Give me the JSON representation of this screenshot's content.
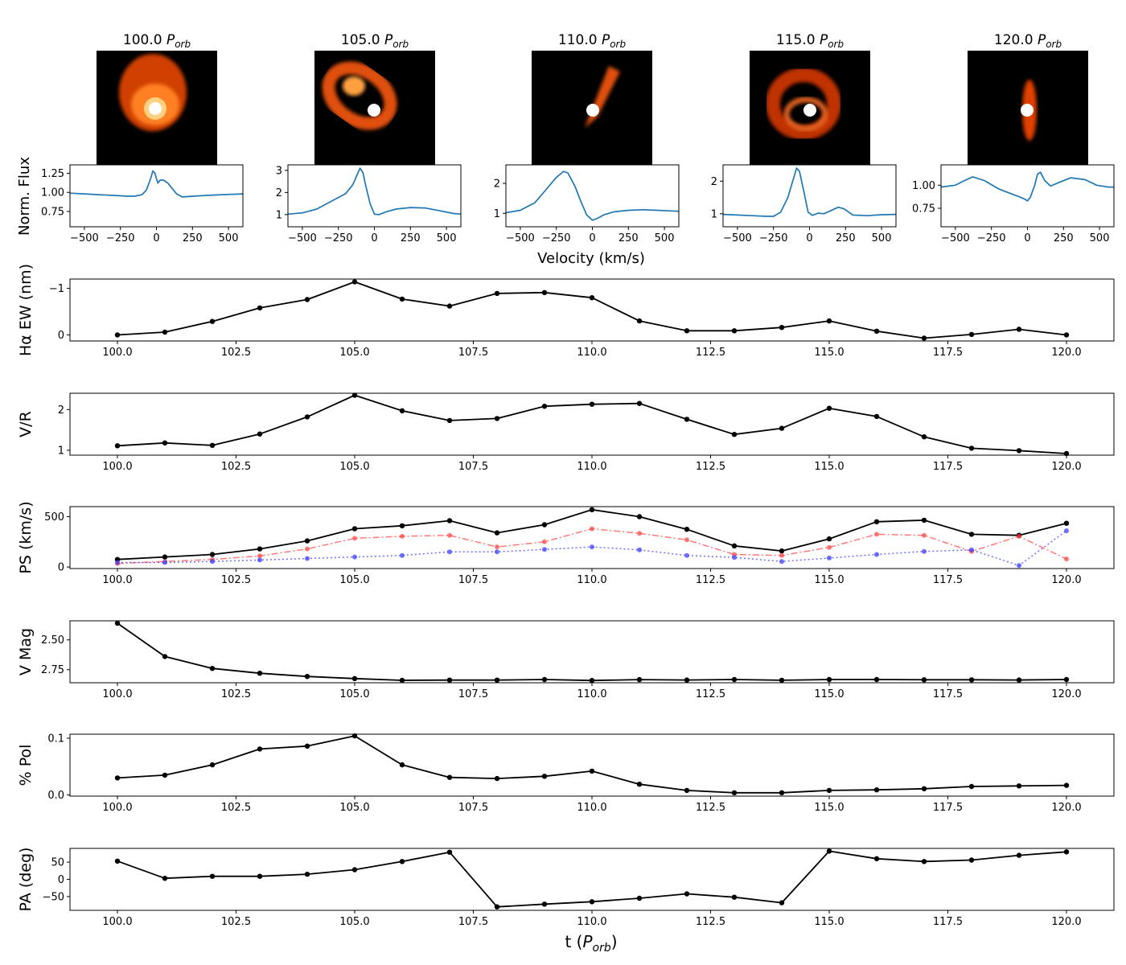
{
  "figure": {
    "xlabel": "t (",
    "xlabel_sub": "orb",
    "velocity_label": "Velocity (km/s)",
    "flux_label": "Norm. Flux"
  },
  "colors": {
    "line": "#000000",
    "profile": "#1f77b4",
    "red": "#ff4040",
    "blue": "#4040ff"
  },
  "snapshots": [
    {
      "title": "100.0 ",
      "title_sub": "orb",
      "yticks": [
        0.75,
        1.0,
        1.25
      ],
      "ylim": [
        0.55,
        1.36
      ],
      "profile": [
        [
          -600,
          0.99
        ],
        [
          -500,
          0.98
        ],
        [
          -400,
          0.97
        ],
        [
          -300,
          0.96
        ],
        [
          -200,
          0.95
        ],
        [
          -150,
          0.95
        ],
        [
          -100,
          0.97
        ],
        [
          -70,
          1.03
        ],
        [
          -40,
          1.18
        ],
        [
          -25,
          1.28
        ],
        [
          -10,
          1.25
        ],
        [
          0,
          1.18
        ],
        [
          10,
          1.12
        ],
        [
          25,
          1.16
        ],
        [
          50,
          1.16
        ],
        [
          80,
          1.12
        ],
        [
          110,
          1.05
        ],
        [
          140,
          0.98
        ],
        [
          180,
          0.94
        ],
        [
          250,
          0.95
        ],
        [
          350,
          0.96
        ],
        [
          450,
          0.97
        ],
        [
          600,
          0.98
        ]
      ]
    },
    {
      "title": "105.0 ",
      "title_sub": "orb",
      "yticks": [
        1,
        2,
        3
      ],
      "ylim": [
        0.45,
        3.25
      ],
      "profile": [
        [
          -600,
          1.02
        ],
        [
          -500,
          1.08
        ],
        [
          -400,
          1.25
        ],
        [
          -300,
          1.6
        ],
        [
          -200,
          1.95
        ],
        [
          -150,
          2.35
        ],
        [
          -120,
          2.8
        ],
        [
          -100,
          3.1
        ],
        [
          -80,
          2.9
        ],
        [
          -60,
          2.3
        ],
        [
          -30,
          1.5
        ],
        [
          0,
          1.02
        ],
        [
          30,
          1.0
        ],
        [
          80,
          1.12
        ],
        [
          150,
          1.25
        ],
        [
          250,
          1.32
        ],
        [
          350,
          1.3
        ],
        [
          450,
          1.18
        ],
        [
          550,
          1.05
        ],
        [
          600,
          1.02
        ]
      ]
    },
    {
      "title": "110.0 ",
      "title_sub": "orb",
      "yticks": [
        1,
        2
      ],
      "ylim": [
        0.55,
        2.62
      ],
      "profile": [
        [
          -600,
          1.02
        ],
        [
          -500,
          1.1
        ],
        [
          -400,
          1.35
        ],
        [
          -320,
          1.8
        ],
        [
          -250,
          2.2
        ],
        [
          -200,
          2.4
        ],
        [
          -170,
          2.35
        ],
        [
          -120,
          1.9
        ],
        [
          -80,
          1.4
        ],
        [
          -40,
          0.95
        ],
        [
          0,
          0.77
        ],
        [
          30,
          0.82
        ],
        [
          80,
          0.95
        ],
        [
          150,
          1.05
        ],
        [
          250,
          1.1
        ],
        [
          350,
          1.12
        ],
        [
          450,
          1.1
        ],
        [
          550,
          1.08
        ],
        [
          600,
          1.07
        ]
      ]
    },
    {
      "title": "115.0 ",
      "title_sub": "orb",
      "yticks": [
        1,
        2
      ],
      "ylim": [
        0.6,
        2.5
      ],
      "profile": [
        [
          -600,
          0.98
        ],
        [
          -500,
          0.96
        ],
        [
          -400,
          0.94
        ],
        [
          -300,
          0.92
        ],
        [
          -250,
          0.92
        ],
        [
          -200,
          1.05
        ],
        [
          -150,
          1.5
        ],
        [
          -110,
          2.1
        ],
        [
          -90,
          2.4
        ],
        [
          -70,
          2.3
        ],
        [
          -40,
          1.7
        ],
        [
          -10,
          1.05
        ],
        [
          20,
          0.95
        ],
        [
          60,
          1.02
        ],
        [
          100,
          1.0
        ],
        [
          150,
          1.1
        ],
        [
          200,
          1.2
        ],
        [
          240,
          1.15
        ],
        [
          300,
          0.96
        ],
        [
          400,
          0.94
        ],
        [
          500,
          0.97
        ],
        [
          600,
          0.98
        ]
      ]
    },
    {
      "title": "120.0 ",
      "title_sub": "orb",
      "yticks": [
        0.75,
        1.0
      ],
      "ylim": [
        0.55,
        1.22
      ],
      "profile": [
        [
          -600,
          0.98
        ],
        [
          -500,
          1.0
        ],
        [
          -450,
          1.04
        ],
        [
          -380,
          1.09
        ],
        [
          -300,
          1.05
        ],
        [
          -200,
          0.96
        ],
        [
          -100,
          0.9
        ],
        [
          -50,
          0.87
        ],
        [
          -20,
          0.85
        ],
        [
          0,
          0.83
        ],
        [
          20,
          0.87
        ],
        [
          50,
          1.0
        ],
        [
          70,
          1.12
        ],
        [
          90,
          1.14
        ],
        [
          120,
          1.05
        ],
        [
          160,
          0.99
        ],
        [
          220,
          1.03
        ],
        [
          300,
          1.08
        ],
        [
          400,
          1.06
        ],
        [
          480,
          1.0
        ],
        [
          560,
          0.98
        ],
        [
          600,
          0.98
        ]
      ]
    }
  ],
  "chart_data": {
    "type": "line",
    "x": [
      100,
      101,
      102,
      103,
      104,
      105,
      106,
      107,
      108,
      109,
      110,
      111,
      112,
      113,
      114,
      115,
      116,
      117,
      118,
      119,
      120
    ],
    "xlim": [
      99,
      121
    ],
    "xticks": [
      100.0,
      102.5,
      105.0,
      107.5,
      110.0,
      112.5,
      115.0,
      117.5,
      120.0
    ],
    "panels": [
      {
        "ylabel": "Hα EW (nm)",
        "ylim": [
          0.13,
          -1.2
        ],
        "yticks": [
          -1,
          0
        ],
        "series": [
          {
            "style": "solid",
            "values": [
              0.0,
              -0.06,
              -0.29,
              -0.58,
              -0.76,
              -1.14,
              -0.77,
              -0.62,
              -0.89,
              -0.91,
              -0.8,
              -0.3,
              -0.09,
              -0.09,
              -0.16,
              -0.3,
              -0.08,
              0.07,
              -0.01,
              -0.12,
              0.0
            ]
          }
        ]
      },
      {
        "ylabel": "V/R",
        "ylim": [
          0.88,
          2.4
        ],
        "yticks": [
          1,
          2
        ],
        "series": [
          {
            "style": "solid",
            "values": [
              1.11,
              1.18,
              1.12,
              1.4,
              1.82,
              2.35,
              1.97,
              1.73,
              1.78,
              2.08,
              2.13,
              2.15,
              1.76,
              1.39,
              1.54,
              2.03,
              1.83,
              1.33,
              1.05,
              0.99,
              0.92
            ]
          }
        ]
      },
      {
        "ylabel": "PS (km/s)",
        "ylim": [
          -15,
          600
        ],
        "yticks": [
          0,
          500
        ],
        "series": [
          {
            "style": "solid",
            "values": [
              75,
              100,
              125,
              180,
              260,
              380,
              410,
              460,
              340,
              420,
              570,
              500,
              375,
              210,
              160,
              280,
              450,
              465,
              325,
              315,
              435
            ]
          },
          {
            "style": "dashdot",
            "values": [
              35,
              55,
              75,
              110,
              180,
              285,
              305,
              315,
              200,
              250,
              380,
              335,
              270,
              125,
              115,
              195,
              325,
              315,
              155,
              305,
              80
            ]
          },
          {
            "style": "dotted",
            "values": [
              45,
              45,
              55,
              70,
              85,
              100,
              115,
              150,
              150,
              175,
              200,
              170,
              115,
              95,
              55,
              90,
              125,
              155,
              170,
              15,
              360
            ]
          }
        ]
      },
      {
        "ylabel": "V Mag",
        "ylim": [
          2.86,
          2.34
        ],
        "yticks": [
          2.5,
          2.75
        ],
        "series": [
          {
            "style": "solid",
            "values": [
              2.36,
              2.64,
              2.74,
              2.78,
              2.807,
              2.825,
              2.84,
              2.838,
              2.838,
              2.833,
              2.841,
              2.834,
              2.837,
              2.833,
              2.839,
              2.833,
              2.833,
              2.835,
              2.835,
              2.837,
              2.833
            ]
          }
        ]
      },
      {
        "ylabel": "% Pol",
        "ylim": [
          -0.002,
          0.107
        ],
        "yticks": [
          0.0,
          0.1
        ],
        "series": [
          {
            "style": "solid",
            "values": [
              0.03,
              0.035,
              0.053,
              0.081,
              0.086,
              0.104,
              0.053,
              0.031,
              0.029,
              0.033,
              0.042,
              0.019,
              0.008,
              0.004,
              0.004,
              0.008,
              0.009,
              0.011,
              0.015,
              0.016,
              0.017
            ]
          }
        ]
      },
      {
        "ylabel": "PA (deg)",
        "ylim": [
          -90,
          90
        ],
        "yticks": [
          -50,
          0,
          50
        ],
        "series": [
          {
            "style": "solid",
            "values": [
              53,
              3,
              9,
              9,
              15,
              28,
              52,
              79,
              -80,
              -72,
              -65,
              -55,
              -42,
              -52,
              -68,
              82,
              60,
              52,
              56,
              70,
              80
            ]
          }
        ]
      }
    ]
  }
}
